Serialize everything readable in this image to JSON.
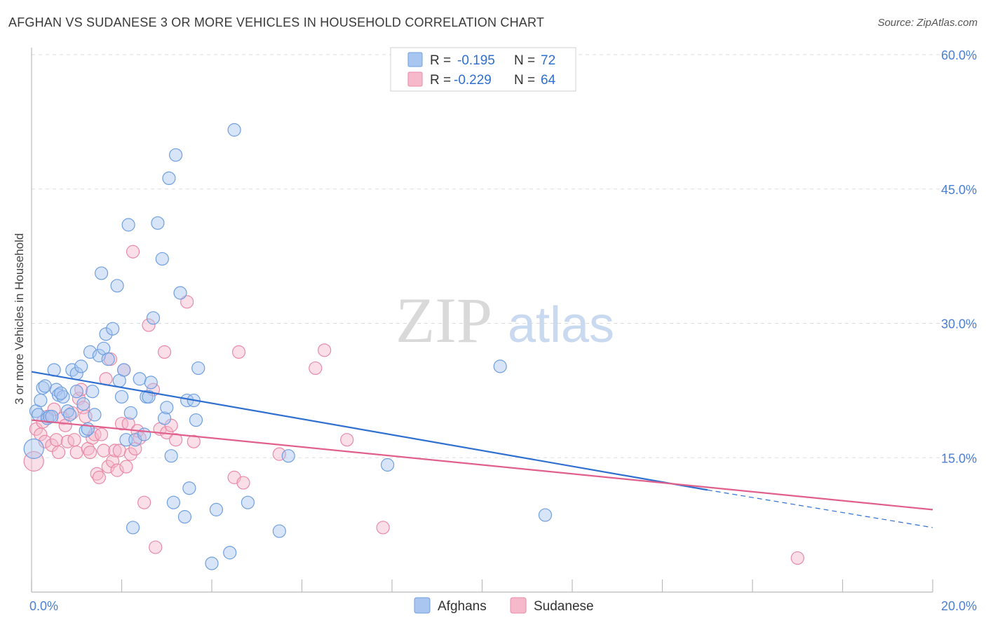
{
  "title": "AFGHAN VS SUDANESE 3 OR MORE VEHICLES IN HOUSEHOLD CORRELATION CHART",
  "source": "Source: ZipAtlas.com",
  "watermark": {
    "zip": "ZIP",
    "atlas": "atlas"
  },
  "colors": {
    "afghans_fill": "#a9c6f0",
    "afghans_stroke": "#6f9fe0",
    "afghans_line": "#2f6fd0",
    "sudanese_fill": "#f5b9cb",
    "sudanese_stroke": "#e98aa6",
    "sudanese_line": "#e0608b",
    "tick": "#4a7fd4",
    "grid": "#dddddd"
  },
  "legend": {
    "r_label": "R =",
    "n_label": "N =",
    "rows": [
      {
        "series": "Afghans",
        "r": "-0.195",
        "n": "72"
      },
      {
        "series": "Sudanese",
        "r": "-0.229",
        "n": "64"
      }
    ]
  },
  "chart_data": {
    "type": "scatter",
    "title": "AFGHAN VS SUDANESE 3 OR MORE VEHICLES IN HOUSEHOLD CORRELATION CHART",
    "xlabel": "",
    "ylabel": "3 or more Vehicles in Household",
    "xlim": [
      0,
      20
    ],
    "ylim": [
      0,
      60
    ],
    "x_tick_labels": [
      "0.0%",
      "20.0%"
    ],
    "y_ticks": [
      15,
      30,
      45,
      60
    ],
    "y_tick_labels": [
      "15.0%",
      "30.0%",
      "45.0%",
      "60.0%"
    ],
    "grid": true,
    "legend_position": "top-center",
    "series": [
      {
        "name": "Afghans",
        "trend": {
          "x0": 0,
          "y0": 24.6,
          "x1": 15,
          "y1": 11.4,
          "dashed_to_x": 20,
          "dashed_to_y": 7.2
        },
        "points": [
          [
            0.1,
            20.2
          ],
          [
            0.15,
            19.8
          ],
          [
            0.2,
            21.4
          ],
          [
            0.25,
            22.8
          ],
          [
            0.3,
            23.0
          ],
          [
            0.35,
            19.4
          ],
          [
            0.4,
            19.6
          ],
          [
            0.5,
            24.8
          ],
          [
            0.55,
            22.6
          ],
          [
            0.6,
            22.0
          ],
          [
            0.7,
            21.8
          ],
          [
            0.8,
            20.2
          ],
          [
            0.85,
            19.8
          ],
          [
            0.9,
            24.8
          ],
          [
            1.0,
            24.4
          ],
          [
            1.0,
            22.4
          ],
          [
            1.1,
            25.2
          ],
          [
            1.15,
            21.0
          ],
          [
            1.2,
            18.0
          ],
          [
            1.3,
            26.8
          ],
          [
            1.35,
            22.4
          ],
          [
            1.4,
            19.8
          ],
          [
            1.5,
            26.4
          ],
          [
            1.55,
            35.6
          ],
          [
            1.6,
            27.2
          ],
          [
            1.65,
            28.8
          ],
          [
            1.7,
            26.0
          ],
          [
            1.8,
            29.4
          ],
          [
            1.9,
            34.2
          ],
          [
            1.95,
            23.6
          ],
          [
            2.0,
            21.8
          ],
          [
            2.05,
            24.8
          ],
          [
            2.1,
            17.0
          ],
          [
            2.15,
            41.0
          ],
          [
            2.2,
            20.0
          ],
          [
            2.3,
            17.0
          ],
          [
            2.4,
            23.8
          ],
          [
            2.5,
            17.6
          ],
          [
            2.55,
            21.8
          ],
          [
            2.6,
            21.8
          ],
          [
            2.65,
            23.4
          ],
          [
            2.7,
            30.6
          ],
          [
            2.8,
            41.2
          ],
          [
            2.9,
            37.2
          ],
          [
            2.95,
            19.4
          ],
          [
            3.0,
            20.6
          ],
          [
            3.05,
            46.2
          ],
          [
            3.1,
            15.2
          ],
          [
            3.15,
            10.0
          ],
          [
            3.3,
            33.4
          ],
          [
            3.4,
            8.4
          ],
          [
            3.45,
            21.4
          ],
          [
            3.5,
            11.6
          ],
          [
            3.6,
            21.4
          ],
          [
            3.65,
            19.2
          ],
          [
            3.7,
            25.0
          ],
          [
            4.0,
            3.2
          ],
          [
            4.1,
            9.2
          ],
          [
            4.4,
            4.4
          ],
          [
            4.5,
            51.6
          ],
          [
            4.8,
            10.0
          ],
          [
            5.5,
            6.8
          ],
          [
            5.7,
            15.2
          ],
          [
            7.9,
            14.2
          ],
          [
            10.4,
            25.2
          ],
          [
            11.4,
            8.6
          ],
          [
            3.2,
            48.8
          ],
          [
            2.25,
            7.2
          ],
          [
            0.05,
            16.0
          ],
          [
            1.25,
            18.2
          ],
          [
            0.65,
            22.2
          ],
          [
            0.45,
            19.6
          ]
        ]
      },
      {
        "name": "Sudanese",
        "trend": {
          "x0": 0,
          "y0": 19.2,
          "x1": 20,
          "y1": 9.2
        },
        "points": [
          [
            0.05,
            14.6
          ],
          [
            0.1,
            18.2
          ],
          [
            0.2,
            17.6
          ],
          [
            0.25,
            19.0
          ],
          [
            0.3,
            16.8
          ],
          [
            0.35,
            19.6
          ],
          [
            0.45,
            16.4
          ],
          [
            0.5,
            20.4
          ],
          [
            0.55,
            17.0
          ],
          [
            0.6,
            15.6
          ],
          [
            0.7,
            19.4
          ],
          [
            0.75,
            18.6
          ],
          [
            0.8,
            16.8
          ],
          [
            0.9,
            20.0
          ],
          [
            0.95,
            17.0
          ],
          [
            1.0,
            15.6
          ],
          [
            1.05,
            21.6
          ],
          [
            1.1,
            22.6
          ],
          [
            1.15,
            20.6
          ],
          [
            1.2,
            19.6
          ],
          [
            1.25,
            16.0
          ],
          [
            1.3,
            15.6
          ],
          [
            1.35,
            17.2
          ],
          [
            1.4,
            17.6
          ],
          [
            1.45,
            13.2
          ],
          [
            1.5,
            12.8
          ],
          [
            1.55,
            17.6
          ],
          [
            1.6,
            15.8
          ],
          [
            1.65,
            23.8
          ],
          [
            1.7,
            14.0
          ],
          [
            1.75,
            26.0
          ],
          [
            1.8,
            14.6
          ],
          [
            1.85,
            15.8
          ],
          [
            1.9,
            13.6
          ],
          [
            1.95,
            15.8
          ],
          [
            2.0,
            18.8
          ],
          [
            2.05,
            24.8
          ],
          [
            2.1,
            14.0
          ],
          [
            2.15,
            18.8
          ],
          [
            2.2,
            15.4
          ],
          [
            2.25,
            38.0
          ],
          [
            2.3,
            16.0
          ],
          [
            2.35,
            18.0
          ],
          [
            2.4,
            17.2
          ],
          [
            2.5,
            10.0
          ],
          [
            2.6,
            29.8
          ],
          [
            2.7,
            22.6
          ],
          [
            2.75,
            5.0
          ],
          [
            2.85,
            18.2
          ],
          [
            2.95,
            26.8
          ],
          [
            3.0,
            17.8
          ],
          [
            3.1,
            18.6
          ],
          [
            3.2,
            17.0
          ],
          [
            3.45,
            32.4
          ],
          [
            3.6,
            16.8
          ],
          [
            4.5,
            12.8
          ],
          [
            4.6,
            26.8
          ],
          [
            4.7,
            12.2
          ],
          [
            5.5,
            15.4
          ],
          [
            6.3,
            25.0
          ],
          [
            6.5,
            27.0
          ],
          [
            7.0,
            17.0
          ],
          [
            7.8,
            7.2
          ],
          [
            17.0,
            3.8
          ]
        ]
      }
    ]
  }
}
